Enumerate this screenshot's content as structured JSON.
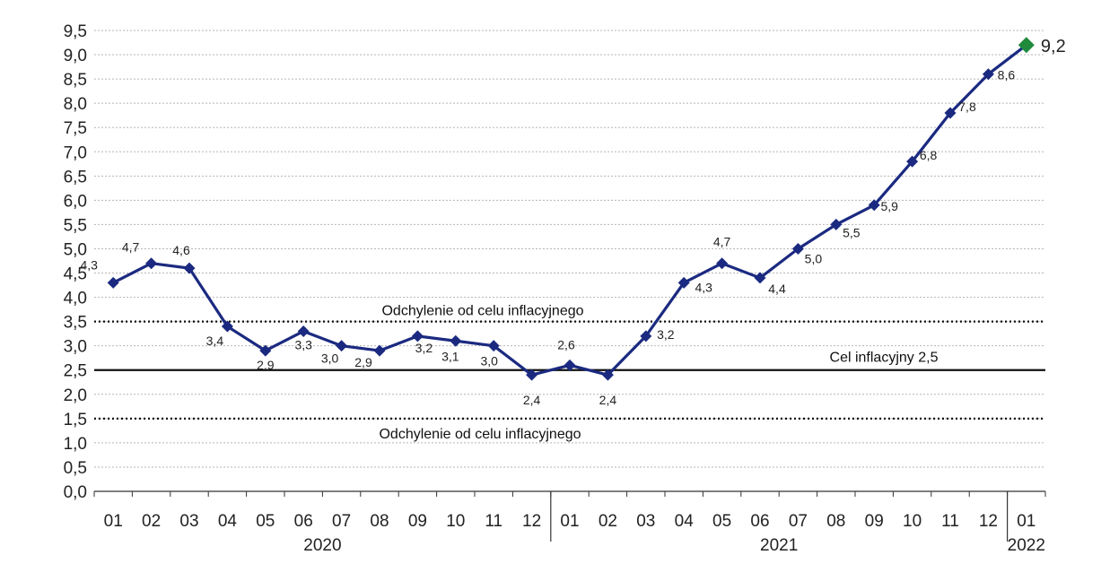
{
  "chart_data": {
    "type": "line",
    "categories": [
      "01",
      "02",
      "03",
      "04",
      "05",
      "06",
      "07",
      "08",
      "09",
      "10",
      "11",
      "12",
      "01",
      "02",
      "03",
      "04",
      "05",
      "06",
      "07",
      "08",
      "09",
      "10",
      "11",
      "12",
      "01"
    ],
    "years": [
      {
        "label": "2020",
        "from": 0,
        "to": 11
      },
      {
        "label": "2021",
        "from": 12,
        "to": 23
      },
      {
        "label": "2022",
        "from": 24,
        "to": 24
      }
    ],
    "values": [
      4.3,
      4.7,
      4.6,
      3.4,
      2.9,
      3.3,
      3.0,
      2.9,
      3.2,
      3.1,
      3.0,
      2.4,
      2.6,
      2.4,
      3.2,
      4.3,
      4.7,
      4.4,
      5.0,
      5.5,
      5.9,
      6.8,
      7.8,
      8.6,
      9.2
    ],
    "value_labels": [
      "4,3",
      "4,7",
      "4,6",
      "3,4",
      "2,9",
      "3,3",
      "3,0",
      "2,9",
      "3,2",
      "3,1",
      "3,0",
      "2,4",
      "2,6",
      "2,4",
      "3,2",
      "4,3",
      "4,7",
      "4,4",
      "5,0",
      "5,5",
      "5,9",
      "6,8",
      "7,8",
      "8,6",
      "9,2"
    ],
    "ylim": [
      0,
      9.5
    ],
    "yticks": [
      0,
      0.5,
      1,
      1.5,
      2,
      2.5,
      3,
      3.5,
      4,
      4.5,
      5,
      5.5,
      6,
      6.5,
      7,
      7.5,
      8,
      8.5,
      9,
      9.5
    ],
    "ytick_labels": [
      "0,0",
      "0,5",
      "1,0",
      "1,5",
      "2,0",
      "2,5",
      "3,0",
      "3,5",
      "4,0",
      "4,5",
      "5,0",
      "5,5",
      "6,0",
      "6,5",
      "7,0",
      "7,5",
      "8,0",
      "8,5",
      "9,0",
      "9,5"
    ],
    "reference_lines": [
      {
        "y": 3.5,
        "style": "dotted",
        "label": "Odchylenie od celu inflacyjnego"
      },
      {
        "y": 2.5,
        "style": "solid",
        "label": "Cel inflacyjny 2,5"
      },
      {
        "y": 1.5,
        "style": "dotted",
        "label": "Odchylenie od celu inflacyjnego"
      }
    ],
    "grid": true,
    "colors": {
      "line": "#1b2a80",
      "last_marker": "#1f8a3c",
      "grid": "#b5b5b5",
      "axis": "#333333"
    }
  }
}
